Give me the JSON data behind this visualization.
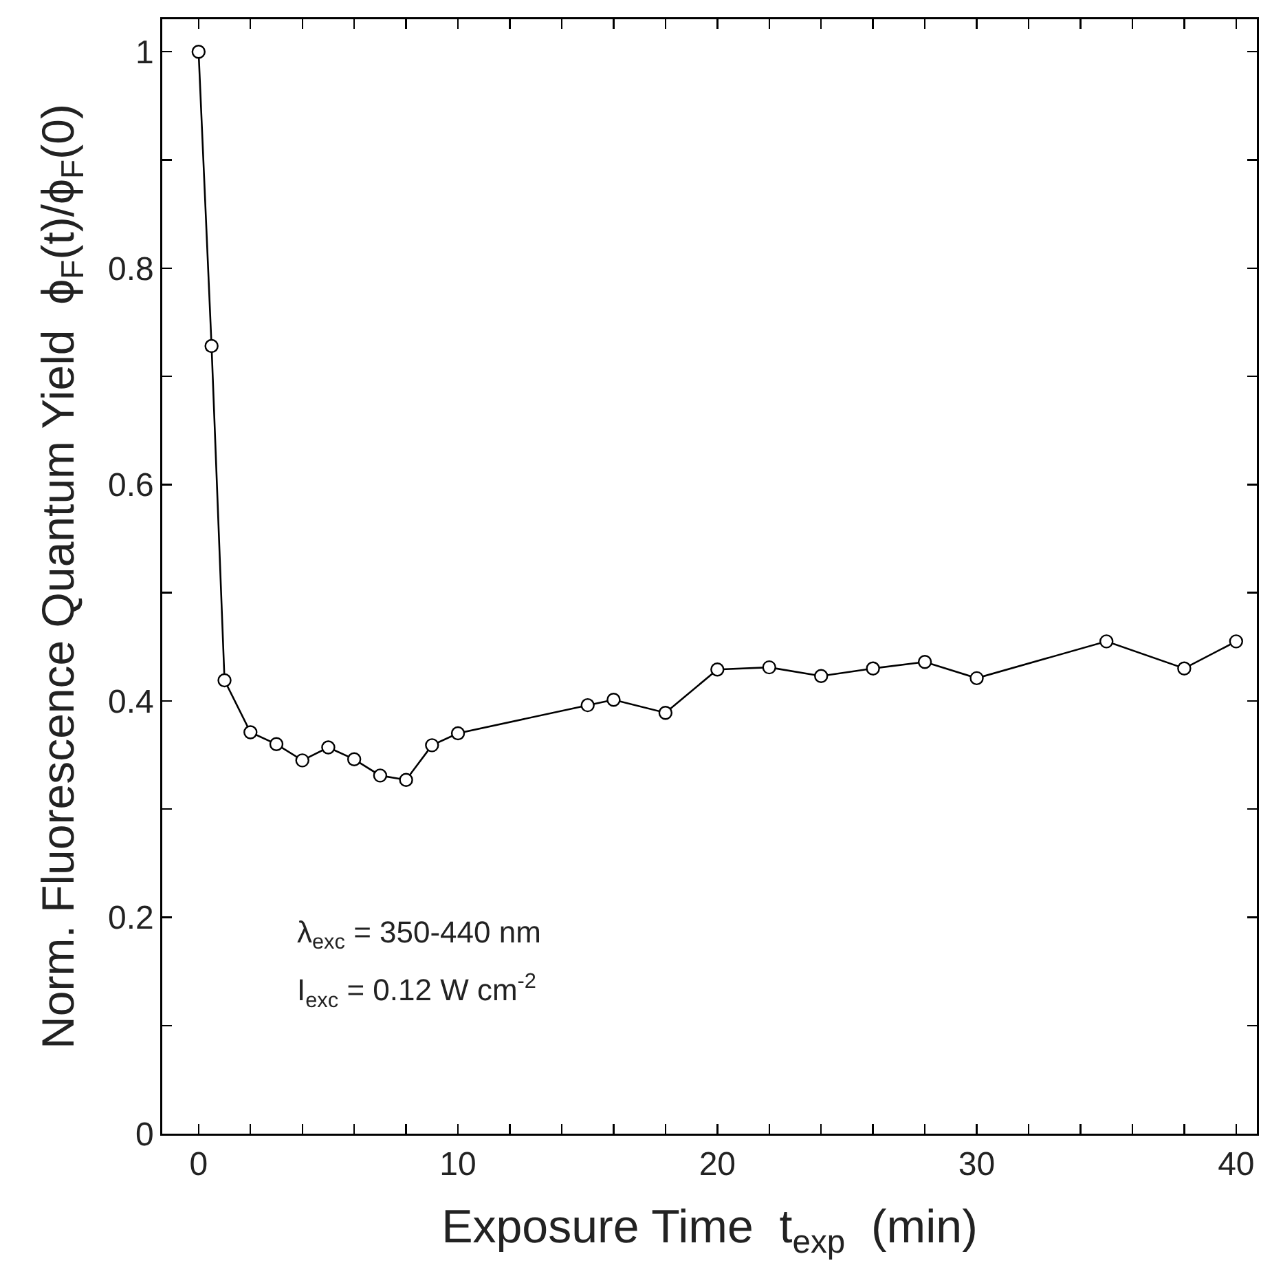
{
  "chart_data": {
    "type": "line",
    "xlabel": "Exposure Time  t$_{exp}$  (min)",
    "ylabel": "Norm. Fluorescence Quantum Yield  ϕ$_{F}$(t)/ϕ$_{F}$(0)",
    "x": [
      0,
      0.5,
      1,
      2,
      3,
      4,
      5,
      6,
      7,
      8,
      9,
      10,
      15,
      16,
      18,
      20,
      22,
      24,
      26,
      28,
      30,
      35,
      38,
      40
    ],
    "series": [
      {
        "color": "#000000",
        "values": [
          1.0,
          0.728,
          0.419,
          0.371,
          0.36,
          0.345,
          0.357,
          0.346,
          0.331,
          0.327,
          0.359,
          0.37,
          0.396,
          0.401,
          0.389,
          0.429,
          0.431,
          0.423,
          0.43,
          0.436,
          0.421,
          0.455,
          0.43,
          0.455
        ]
      }
    ],
    "marker": "circle",
    "line_style": "solid",
    "xlim": [
      -1.4,
      40.8
    ],
    "ylim": [
      0,
      1.03
    ],
    "xticks": [
      0,
      {
        "value": 2,
        "label": null
      },
      {
        "value": 4,
        "label": null
      },
      {
        "value": 6,
        "label": null
      },
      {
        "value": 8,
        "label": null
      },
      10,
      {
        "value": 12,
        "label": null
      },
      {
        "value": 14,
        "label": null
      },
      {
        "value": 16,
        "label": null
      },
      {
        "value": 18,
        "label": null
      },
      20,
      {
        "value": 22,
        "label": null
      },
      {
        "value": 24,
        "label": null
      },
      {
        "value": 26,
        "label": null
      },
      {
        "value": 28,
        "label": null
      },
      30,
      {
        "value": 32,
        "label": null
      },
      {
        "value": 34,
        "label": null
      },
      {
        "value": 36,
        "label": null
      },
      {
        "value": 38,
        "label": null
      },
      40
    ],
    "yticks": [
      0,
      {
        "value": 0.1,
        "label": null
      },
      0.2,
      {
        "value": 0.3,
        "label": null
      },
      0.4,
      {
        "value": 0.5,
        "label": null
      },
      0.6,
      {
        "value": 0.7,
        "label": null
      },
      0.8,
      {
        "value": 0.9,
        "label": null
      },
      1
    ],
    "annotations": [
      "λ$_{exc}$ = 350-440 nm",
      "I$_{exc}$ = 0.12 W cm$^{-2}$"
    ]
  }
}
